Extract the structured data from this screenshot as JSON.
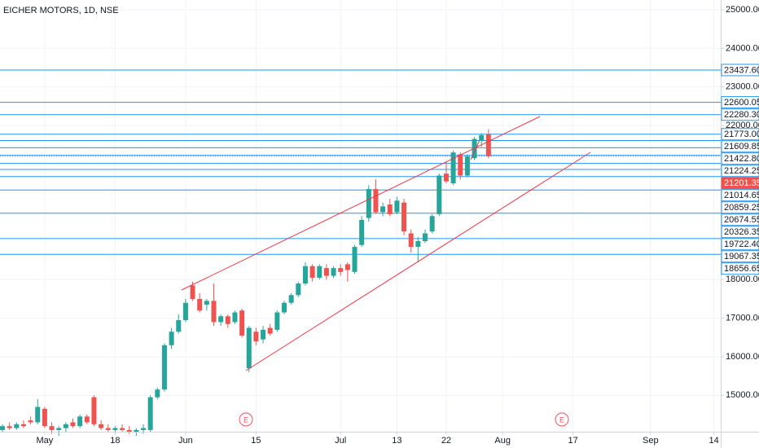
{
  "chart_data": {
    "type": "candlestick",
    "title": "EICHER MOTORS, 1D, NSE",
    "open": [
      14100,
      14200,
      14150,
      14250,
      14350,
      14300,
      14650,
      14200,
      14100,
      14150,
      14300,
      14200,
      14450,
      14950,
      14250,
      14150,
      14100,
      14150,
      14100,
      14050,
      14100,
      14100,
      14950,
      15150,
      16300,
      16650,
      16950,
      17850,
      17500,
      17350,
      17450,
      16900,
      17050,
      16900,
      17200,
      15700,
      16650,
      16450,
      16750,
      16700,
      17150,
      17400,
      17600,
      17900,
      18350,
      18050,
      18300,
      18100,
      18300,
      18400,
      18200,
      18900,
      19600,
      20350,
      19750,
      19950,
      19750,
      20000,
      19200,
      18850,
      19000,
      19250,
      19700,
      20750,
      20500,
      21250,
      20700,
      21150,
      21600,
      21773
    ],
    "high": [
      14250,
      14300,
      14300,
      14350,
      14450,
      14900,
      14700,
      14300,
      14200,
      14300,
      14400,
      14500,
      14500,
      15000,
      14350,
      14250,
      14200,
      14250,
      14200,
      14150,
      14250,
      15000,
      15200,
      16350,
      16750,
      17100,
      17500,
      17950,
      17650,
      17500,
      17900,
      17100,
      17100,
      17200,
      17250,
      16800,
      16750,
      16800,
      16850,
      17200,
      17450,
      17650,
      17950,
      18450,
      18400,
      18400,
      18400,
      18350,
      18400,
      18450,
      18900,
      19650,
      20450,
      20600,
      20000,
      20100,
      20150,
      20100,
      19300,
      19100,
      19300,
      19700,
      20750,
      21050,
      21350,
      21300,
      21250,
      21700,
      21800,
      21900
    ],
    "low": [
      14050,
      14100,
      14100,
      14150,
      14250,
      14250,
      14150,
      14000,
      13950,
      14050,
      14150,
      14150,
      14250,
      14200,
      14100,
      14050,
      14000,
      14050,
      14000,
      13950,
      14000,
      14050,
      14900,
      15100,
      16200,
      16600,
      16900,
      17450,
      17150,
      17200,
      16800,
      16800,
      16750,
      16850,
      16500,
      15600,
      16300,
      16350,
      16550,
      16650,
      17100,
      17350,
      17550,
      17850,
      17950,
      18000,
      18000,
      18050,
      18100,
      17950,
      18150,
      18850,
      19500,
      19700,
      19650,
      19650,
      19700,
      19150,
      18700,
      18450,
      18950,
      19200,
      19650,
      20500,
      20450,
      20600,
      20650,
      21100,
      21450,
      21150
    ],
    "close": [
      14200,
      14150,
      14250,
      14200,
      14300,
      14700,
      14200,
      14100,
      14150,
      14250,
      14200,
      14450,
      14300,
      14250,
      14150,
      14100,
      14150,
      14100,
      14050,
      14100,
      14150,
      14950,
      15150,
      16300,
      16650,
      16950,
      17400,
      17500,
      17200,
      17450,
      16900,
      17050,
      16850,
      17150,
      16550,
      16750,
      16400,
      16700,
      16600,
      17150,
      17400,
      17600,
      17900,
      18350,
      18050,
      18350,
      18100,
      18300,
      18200,
      18250,
      18850,
      19550,
      20350,
      19750,
      19900,
      19700,
      20050,
      19250,
      18850,
      19000,
      19200,
      19650,
      20700,
      20550,
      21300,
      20700,
      21200,
      21650,
      21750,
      21201.35
    ],
    "up_color": "#26a69a",
    "down_color": "#ef5350",
    "ylim": [
      14056,
      25254
    ],
    "yticks": [
      {
        "value": 15000,
        "label": "15000.00"
      },
      {
        "value": 16000,
        "label": "16000.00"
      },
      {
        "value": 17000,
        "label": "17000.00"
      },
      {
        "value": 18000,
        "label": "18000.00"
      },
      {
        "value": 22000,
        "label": "22000.00"
      },
      {
        "value": 23000,
        "label": "23000.00"
      },
      {
        "value": 24000,
        "label": "24000.00"
      },
      {
        "value": 25000,
        "label": "25000.00"
      }
    ],
    "xlim": [
      -0.35,
      102
    ],
    "xticks": [
      {
        "value": 6,
        "label": "May"
      },
      {
        "value": 16,
        "label": "18"
      },
      {
        "value": 26,
        "label": "Jun"
      },
      {
        "value": 36,
        "label": "15"
      },
      {
        "value": 48,
        "label": "Jul"
      },
      {
        "value": 56,
        "label": "13"
      },
      {
        "value": 63,
        "label": "22"
      },
      {
        "value": 71,
        "label": "Aug"
      },
      {
        "value": 81,
        "label": "17"
      },
      {
        "value": 92,
        "label": "Sep"
      },
      {
        "value": 101,
        "label": "14"
      }
    ],
    "grid": true,
    "levels": {
      "color": "#2196f3",
      "values": [
        23437.6,
        22600.05,
        22280.3,
        21773,
        21609.85,
        21422.8,
        21224.25,
        21014.65,
        20859.25,
        20674.55,
        20326.35,
        19722.4,
        19067.35,
        18656.65
      ],
      "value_labels": [
        "23437.60",
        "22600.05",
        "22280.30",
        "21773.00",
        "21609.85",
        "21422.80",
        "21224.25",
        "21014.65",
        "20859.25",
        "20674.55",
        "20326.35",
        "19722.40",
        "19067.35",
        "18656.65"
      ]
    },
    "last_price": 21201.35,
    "last_price_color": "#ef5350",
    "event_labels": [
      "E",
      "E"
    ]
  }
}
